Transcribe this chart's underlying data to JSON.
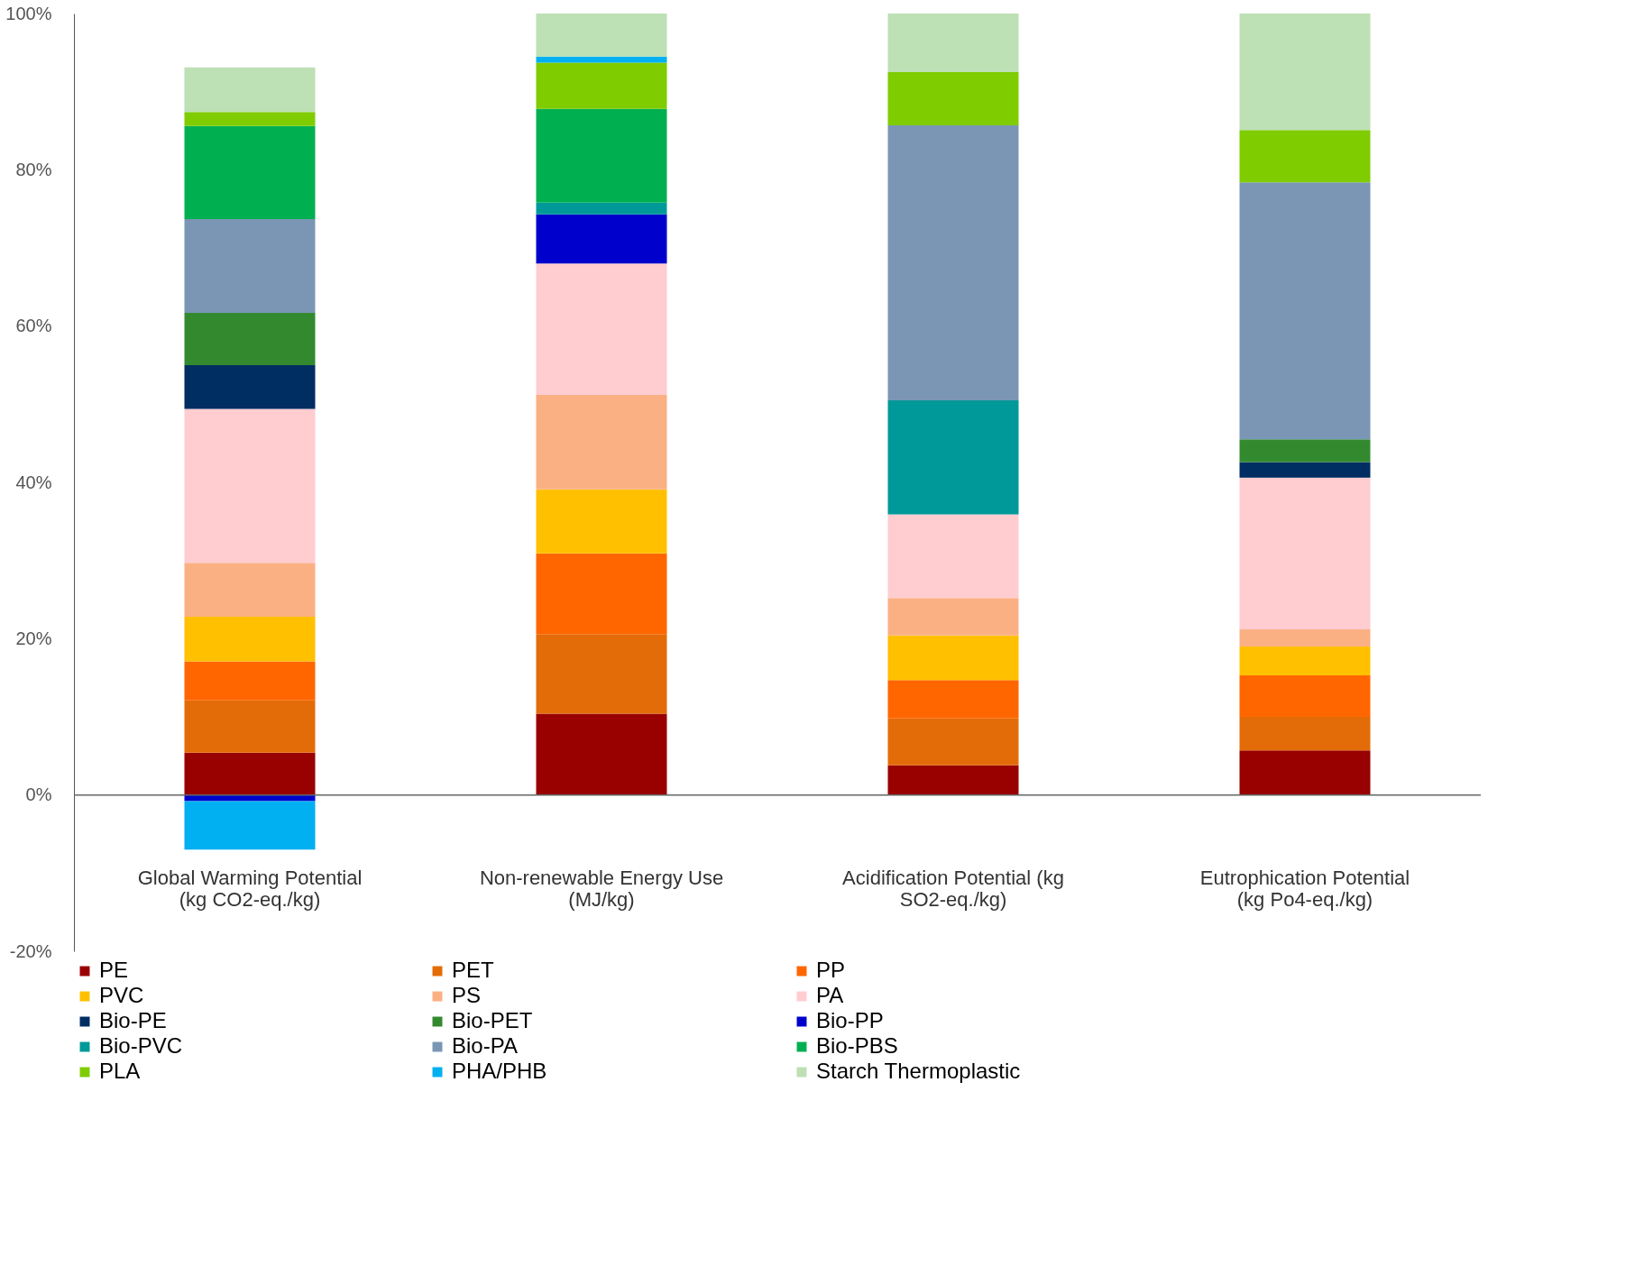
{
  "chart_data": {
    "type": "bar",
    "stacked": true,
    "categories": [
      "Global Warming Potential (kg CO2-eq./kg)",
      "Non-renewable Energy Use (MJ/kg)",
      "Acidification Potential (kg SO2-eq./kg)",
      "Eutrophication Potential (kg Po4-eq./kg)"
    ],
    "ylim": [
      -20,
      100
    ],
    "yticks": [
      {
        "value": -20,
        "label": "-20%"
      },
      {
        "value": 0,
        "label": "0%"
      },
      {
        "value": 20,
        "label": "20%"
      },
      {
        "value": 40,
        "label": "40%"
      },
      {
        "value": 60,
        "label": "60%"
      },
      {
        "value": 80,
        "label": "80%"
      },
      {
        "value": 100,
        "label": "100%"
      }
    ],
    "grid": false,
    "legend": "bottom",
    "ref_lines": [
      {
        "axis": "y",
        "value": 0,
        "color": "#666666"
      }
    ],
    "series": [
      {
        "name": "PE",
        "color": "#990000",
        "values": [
          5.4,
          10.4,
          3.8,
          5.7
        ]
      },
      {
        "name": "PET",
        "color": "#e36c09",
        "values": [
          6.7,
          10.2,
          6.0,
          4.3
        ]
      },
      {
        "name": "PP",
        "color": "#ff6600",
        "values": [
          5.0,
          10.3,
          4.9,
          5.3
        ]
      },
      {
        "name": "PVC",
        "color": "#ffc000",
        "values": [
          5.7,
          8.2,
          5.7,
          3.7
        ]
      },
      {
        "name": "PS",
        "color": "#fbb084",
        "values": [
          6.9,
          12.1,
          4.8,
          2.2
        ]
      },
      {
        "name": "PA",
        "color": "#ffccd0",
        "values": [
          19.7,
          16.8,
          10.7,
          19.4
        ]
      },
      {
        "name": "Bio-PE",
        "color": "#002d62",
        "values": [
          5.6,
          null,
          null,
          2.0
        ]
      },
      {
        "name": "Bio-PET",
        "color": "#338a2e",
        "values": [
          6.7,
          null,
          null,
          2.9
        ]
      },
      {
        "name": "Bio-PP",
        "color": "#0000cc",
        "values": [
          -0.8,
          6.3,
          null,
          null
        ]
      },
      {
        "name": "Bio-PVC",
        "color": "#009999",
        "values": [
          null,
          1.5,
          14.6,
          null
        ]
      },
      {
        "name": "Bio-PA",
        "color": "#7a96b4",
        "values": [
          12.0,
          null,
          35.2,
          32.9
        ]
      },
      {
        "name": "Bio-PBS",
        "color": "#00b050",
        "values": [
          11.9,
          12.0,
          null,
          null
        ]
      },
      {
        "name": "PLA",
        "color": "#7fcc00",
        "values": [
          1.8,
          5.9,
          6.8,
          6.7
        ]
      },
      {
        "name": "PHA/PHB",
        "color": "#00b0f0",
        "values": [
          -6.2,
          0.8,
          null,
          null
        ]
      },
      {
        "name": "Starch Thermoplastic",
        "color": "#bde0b5",
        "values": [
          5.7,
          5.5,
          7.5,
          14.9
        ]
      }
    ]
  }
}
